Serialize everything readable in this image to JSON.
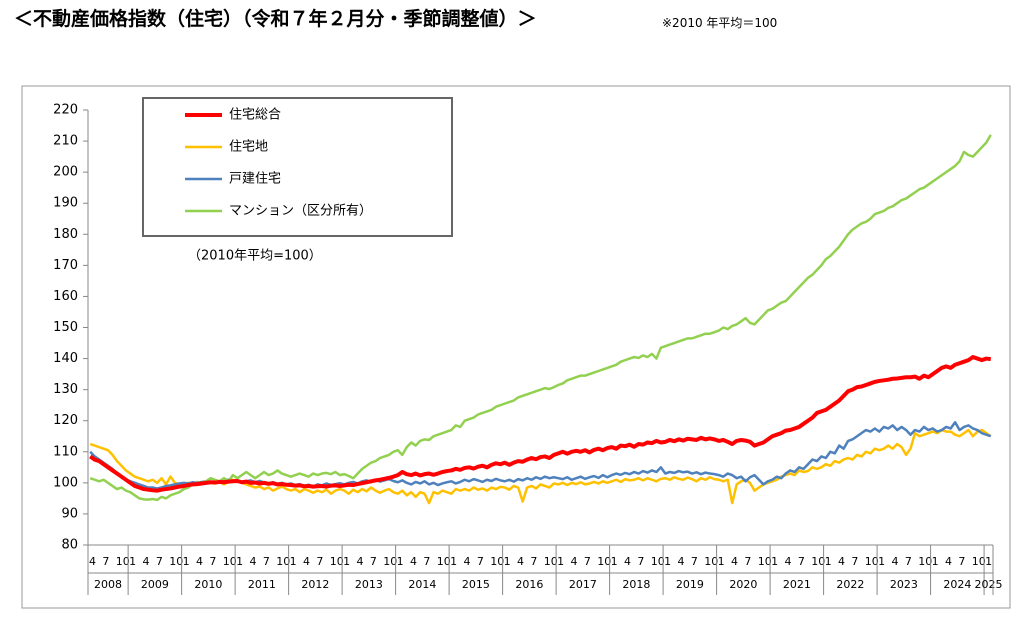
{
  "chart_data": {
    "type": "line",
    "title": "＜不動産価格指数（住宅）（令和７年２月分・季節調整値）＞",
    "subtitle": "※2010 年平均＝100",
    "annotation": "（2010年平均=100）",
    "legend": "upper left",
    "grid": false,
    "ylim": [
      80,
      220
    ],
    "yticks": [
      80,
      90,
      100,
      110,
      120,
      130,
      140,
      150,
      160,
      170,
      180,
      190,
      200,
      210,
      220
    ],
    "x_groups": [
      "2008",
      "2009",
      "2010",
      "2011",
      "2012",
      "2013",
      "2014",
      "2015",
      "2016",
      "2017",
      "2018",
      "2019",
      "2020",
      "2021",
      "2022",
      "2023",
      "2024",
      "2025"
    ],
    "categories": [
      "4",
      null,
      null,
      "7",
      null,
      null,
      "10",
      null,
      null,
      "1",
      null,
      null,
      "4",
      null,
      null,
      "7",
      null,
      null,
      "10",
      null,
      null,
      "1",
      null,
      null,
      "4",
      null,
      null,
      "7",
      null,
      null,
      "10",
      null,
      null,
      "1",
      null,
      null,
      "4",
      null,
      null,
      "7",
      null,
      null,
      "10",
      null,
      null,
      "1",
      null,
      null,
      "4",
      null,
      null,
      "7",
      null,
      null,
      "10",
      null,
      null,
      "1",
      null,
      null,
      "4",
      null,
      null,
      "7",
      null,
      null,
      "10",
      null,
      null,
      "1",
      null,
      null,
      "4",
      null,
      null,
      "7",
      null,
      null,
      "10",
      null,
      null,
      "1",
      null,
      null,
      "4",
      null,
      null,
      "7",
      null,
      null,
      "10",
      null,
      null,
      "1",
      null,
      null,
      "4",
      null,
      null,
      "7",
      null,
      null,
      "10",
      null,
      null,
      "1",
      null,
      null,
      "4",
      null,
      null,
      "7",
      null,
      null,
      "10",
      null,
      null,
      "1",
      null,
      null,
      "4",
      null,
      null,
      "7",
      null,
      null,
      "10",
      null,
      null,
      "1",
      null,
      null,
      "4",
      null,
      null,
      "7",
      null,
      null,
      "10",
      null,
      null,
      "1",
      null,
      null,
      "4",
      null,
      null,
      "7",
      null,
      null,
      "10",
      null,
      null,
      "1",
      null,
      null,
      "4",
      null,
      null,
      "7",
      null,
      null,
      "10",
      null,
      null,
      "1",
      null,
      null,
      "4",
      null,
      null,
      "7",
      null,
      null,
      "10",
      null,
      null,
      "1",
      null,
      null,
      "4",
      null,
      null,
      "7",
      null,
      null,
      "10",
      null,
      null,
      "1",
      null,
      null,
      "4",
      null,
      null,
      "7",
      null,
      null,
      "10",
      null,
      null,
      "1",
      null
    ],
    "series": [
      {
        "name": "住宅総合",
        "color": "#ff0000",
        "width": 4,
        "values": [
          108.5,
          107.5,
          107,
          106,
          105,
          104,
          103,
          102,
          101,
          100,
          99,
          98.5,
          98,
          97.8,
          97.6,
          97.5,
          97.8,
          98,
          98.2,
          98.5,
          98.8,
          99,
          99.3,
          99.5,
          99.6,
          99.8,
          100,
          100.2,
          100.1,
          100.3,
          100.2,
          100.4,
          100.5,
          100.6,
          100.2,
          100.4,
          100,
          100.1,
          99.8,
          100,
          99.7,
          99.9,
          99.5,
          99.6,
          99.4,
          99.3,
          99.1,
          99.2,
          98.9,
          99,
          98.8,
          98.9,
          99,
          98.8,
          99.1,
          99.2,
          99,
          99.2,
          99.4,
          99.3,
          99.6,
          99.9,
          100.2,
          100.5,
          100.8,
          101,
          101.3,
          101.6,
          102,
          102.5,
          103.5,
          102.8,
          102.5,
          103,
          102.4,
          102.8,
          103,
          102.6,
          103,
          103.5,
          103.8,
          104,
          104.5,
          104.2,
          104.8,
          105,
          104.6,
          105.2,
          105.5,
          105,
          105.8,
          106.3,
          106,
          106.5,
          105.8,
          106.5,
          107,
          106.8,
          107.5,
          108,
          107.6,
          108.3,
          108.5,
          108,
          109,
          109.5,
          110,
          109.4,
          110,
          110.3,
          110,
          110.5,
          109.8,
          110.6,
          111,
          110.5,
          111.2,
          111.5,
          111,
          112,
          111.8,
          112.3,
          111.6,
          112.5,
          112.3,
          113,
          112.8,
          113.5,
          113,
          113.2,
          113.8,
          113.4,
          114,
          113.6,
          114.2,
          114,
          113.8,
          114.5,
          114,
          114.3,
          114,
          113.5,
          113.8,
          113.2,
          112.5,
          113.5,
          113.8,
          113.6,
          113.2,
          112,
          112.5,
          113,
          114,
          115,
          115.5,
          116,
          116.8,
          117,
          117.5,
          118,
          119,
          120,
          121,
          122.5,
          123,
          123.5,
          124.5,
          125.5,
          126.5,
          128,
          129.5,
          130,
          130.8,
          131,
          131.5,
          132,
          132.5,
          132.8,
          133,
          133.2,
          133.5,
          133.6,
          133.8,
          134,
          134,
          134.2,
          133.5,
          134.5,
          134,
          135,
          136,
          137,
          137.5,
          137,
          138,
          138.5,
          139,
          139.5,
          140.5,
          140,
          139.5,
          140,
          139.8
        ]
      },
      {
        "name": "住宅地",
        "color": "#ffc000",
        "width": 2.5,
        "values": [
          112.5,
          112,
          111.5,
          111,
          110.5,
          109,
          107,
          105.5,
          104,
          103,
          102,
          101.5,
          101,
          100.5,
          101,
          100,
          101.5,
          99.5,
          102,
          100,
          99.5,
          99.8,
          100,
          99.5,
          100.3,
          99.8,
          100.5,
          100,
          99.8,
          100.2,
          99.5,
          100.3,
          101,
          100.5,
          100,
          99.5,
          99,
          98.5,
          98.8,
          98,
          98.5,
          97.5,
          98.2,
          98.8,
          98,
          97.5,
          98,
          97,
          98,
          97.5,
          96.8,
          97.5,
          97,
          97.8,
          96.5,
          97.5,
          98,
          97.5,
          96.5,
          97.8,
          97,
          98,
          97.3,
          98.5,
          97.5,
          96.8,
          97.5,
          98,
          97,
          96.5,
          97.5,
          96,
          97,
          95.5,
          97,
          96.5,
          93.5,
          97,
          96.5,
          97.5,
          97,
          96.5,
          98,
          97.5,
          98,
          97.5,
          98.5,
          97.8,
          98.2,
          97.5,
          98.5,
          98,
          98.7,
          98.5,
          97.8,
          99,
          98.5,
          94,
          98.5,
          99,
          98.2,
          99.5,
          99,
          98.5,
          99.8,
          99.5,
          100,
          99.3,
          100,
          99.6,
          100.2,
          99.5,
          99.8,
          100.3,
          99.8,
          100.5,
          100,
          100.5,
          101,
          100.3,
          101.2,
          100.8,
          101,
          101.5,
          100.8,
          101.5,
          101,
          100.5,
          101.3,
          101.5,
          101,
          101.8,
          101.3,
          101,
          101.7,
          101.2,
          100.5,
          101.5,
          101,
          101.8,
          101.2,
          101,
          100.5,
          101,
          93.5,
          99.5,
          100.5,
          101,
          100,
          97.5,
          98.5,
          99.5,
          100,
          100.5,
          101,
          102,
          102.5,
          103,
          102.5,
          104,
          103.5,
          103.8,
          105,
          104.5,
          105,
          106,
          105.5,
          107,
          106.5,
          107.5,
          108,
          107.5,
          109,
          108.5,
          110,
          109.5,
          111,
          110.5,
          111,
          112,
          111,
          112.5,
          111.5,
          109,
          111,
          116,
          115,
          115.5,
          116,
          116.5,
          116,
          117,
          116.5,
          116.5,
          115.5,
          115,
          116,
          117,
          115,
          116.5,
          117,
          116,
          115
        ]
      },
      {
        "name": "戸建住宅",
        "color": "#4f81bd",
        "width": 2.5,
        "values": [
          110,
          108.5,
          107.5,
          106.5,
          105.5,
          104.5,
          103,
          102,
          101,
          100.5,
          100,
          99.5,
          99,
          98.5,
          98.5,
          98.2,
          98.5,
          99,
          99.2,
          99.5,
          99.8,
          100,
          99.8,
          100.2,
          100,
          100.3,
          100.5,
          100.2,
          100.6,
          100.4,
          100.8,
          101,
          100.5,
          100.7,
          100.3,
          100.5,
          100.8,
          100.2,
          100.6,
          100.1,
          99.8,
          100.2,
          99.7,
          100,
          99.5,
          99.8,
          99.3,
          99.6,
          99,
          99.4,
          98.8,
          99.5,
          99.2,
          99.8,
          99.3,
          99.6,
          99.9,
          99.5,
          100,
          100.3,
          99.8,
          100.5,
          100.8,
          100.2,
          101,
          100.4,
          100.8,
          101.2,
          100.6,
          100.2,
          100.8,
          100,
          99.5,
          100.3,
          99.8,
          100.5,
          99.5,
          100,
          99.3,
          99.8,
          100.2,
          100.5,
          99.8,
          100.3,
          101,
          100.5,
          101.2,
          100.8,
          100.3,
          101,
          100.6,
          101.3,
          100.8,
          100.5,
          101,
          100.4,
          101.2,
          100.8,
          101.5,
          101,
          101.8,
          101.3,
          102,
          101.5,
          101.8,
          101.5,
          101.2,
          101.8,
          101,
          101.5,
          102,
          101.3,
          101.8,
          102.2,
          101.6,
          102.5,
          101.8,
          102.5,
          103,
          102.6,
          103.2,
          102.8,
          103.5,
          103,
          103.8,
          103.3,
          104,
          103.5,
          105,
          103,
          103.5,
          103.2,
          103.8,
          103.4,
          103.6,
          103,
          103.4,
          102.8,
          103.3,
          103,
          102.8,
          102.5,
          102,
          103,
          102.5,
          101.5,
          102,
          100.5,
          101.8,
          102.5,
          101,
          99.5,
          100.5,
          101,
          102,
          101.5,
          103,
          104,
          103.5,
          105,
          104.5,
          106,
          107.5,
          107,
          108.5,
          108,
          110,
          109.5,
          112,
          111,
          113.5,
          114,
          115,
          116,
          117,
          116.5,
          117.5,
          116.5,
          118,
          117.5,
          118.5,
          117,
          118,
          117,
          115.5,
          117,
          116.5,
          118,
          117,
          117.5,
          116.5,
          117,
          118,
          117.5,
          119.5,
          117,
          118,
          118.5,
          117.5,
          117,
          116,
          115.5,
          115
        ]
      },
      {
        "name": "マンション（区分所有）",
        "color": "#92d050",
        "width": 2.5,
        "values": [
          101.5,
          101,
          100.5,
          101,
          100,
          99,
          98,
          98.5,
          97.5,
          97,
          96,
          95,
          94.7,
          94.6,
          94.8,
          94.5,
          95.5,
          95,
          96,
          96.5,
          97,
          98,
          98.5,
          99.5,
          99.5,
          100,
          100.5,
          101.5,
          101,
          100.5,
          101.5,
          100.5,
          102.5,
          101.5,
          102.5,
          103.5,
          102.5,
          101.5,
          102.5,
          103.5,
          102.5,
          103,
          104,
          103,
          102.5,
          102,
          102.5,
          103,
          102.5,
          102,
          103,
          102.5,
          103,
          103.2,
          102.8,
          103.5,
          102.5,
          102.8,
          102.2,
          101.5,
          103,
          104.5,
          105.5,
          106.5,
          107,
          108,
          108.5,
          109,
          110,
          110.5,
          109,
          111.5,
          113,
          112,
          113.5,
          114,
          113.8,
          115,
          115.5,
          116,
          116.5,
          117,
          118.5,
          118,
          120,
          120.5,
          121,
          122,
          122.5,
          123,
          123.5,
          124.5,
          125,
          125.5,
          126,
          126.5,
          127.5,
          128,
          128.5,
          129,
          129.5,
          130,
          130.5,
          130.2,
          130.8,
          131.5,
          132,
          133,
          133.5,
          134,
          134.5,
          134.5,
          135,
          135.5,
          136,
          136.5,
          137,
          137.5,
          138,
          139,
          139.5,
          140,
          140.5,
          140.2,
          141,
          140.5,
          141.5,
          140,
          143.5,
          144,
          144.5,
          145,
          145.5,
          146,
          146.5,
          146.5,
          147,
          147.5,
          148,
          148,
          148.5,
          149,
          150,
          149.5,
          150.5,
          151,
          152,
          153,
          151.5,
          151,
          152.5,
          154,
          155.5,
          156,
          157,
          158,
          158.5,
          160,
          161.5,
          163,
          164.5,
          166,
          167,
          168.5,
          170,
          172,
          173,
          174.5,
          176,
          178,
          180,
          181.5,
          182.5,
          183.5,
          184,
          185,
          186.5,
          187,
          187.5,
          188.5,
          189,
          190,
          191,
          191.5,
          192.5,
          193.5,
          194.5,
          195,
          196,
          197,
          198,
          199,
          200,
          201,
          202,
          203.5,
          206.5,
          205.5,
          205,
          206.5,
          208,
          209.5,
          212
        ]
      }
    ]
  }
}
